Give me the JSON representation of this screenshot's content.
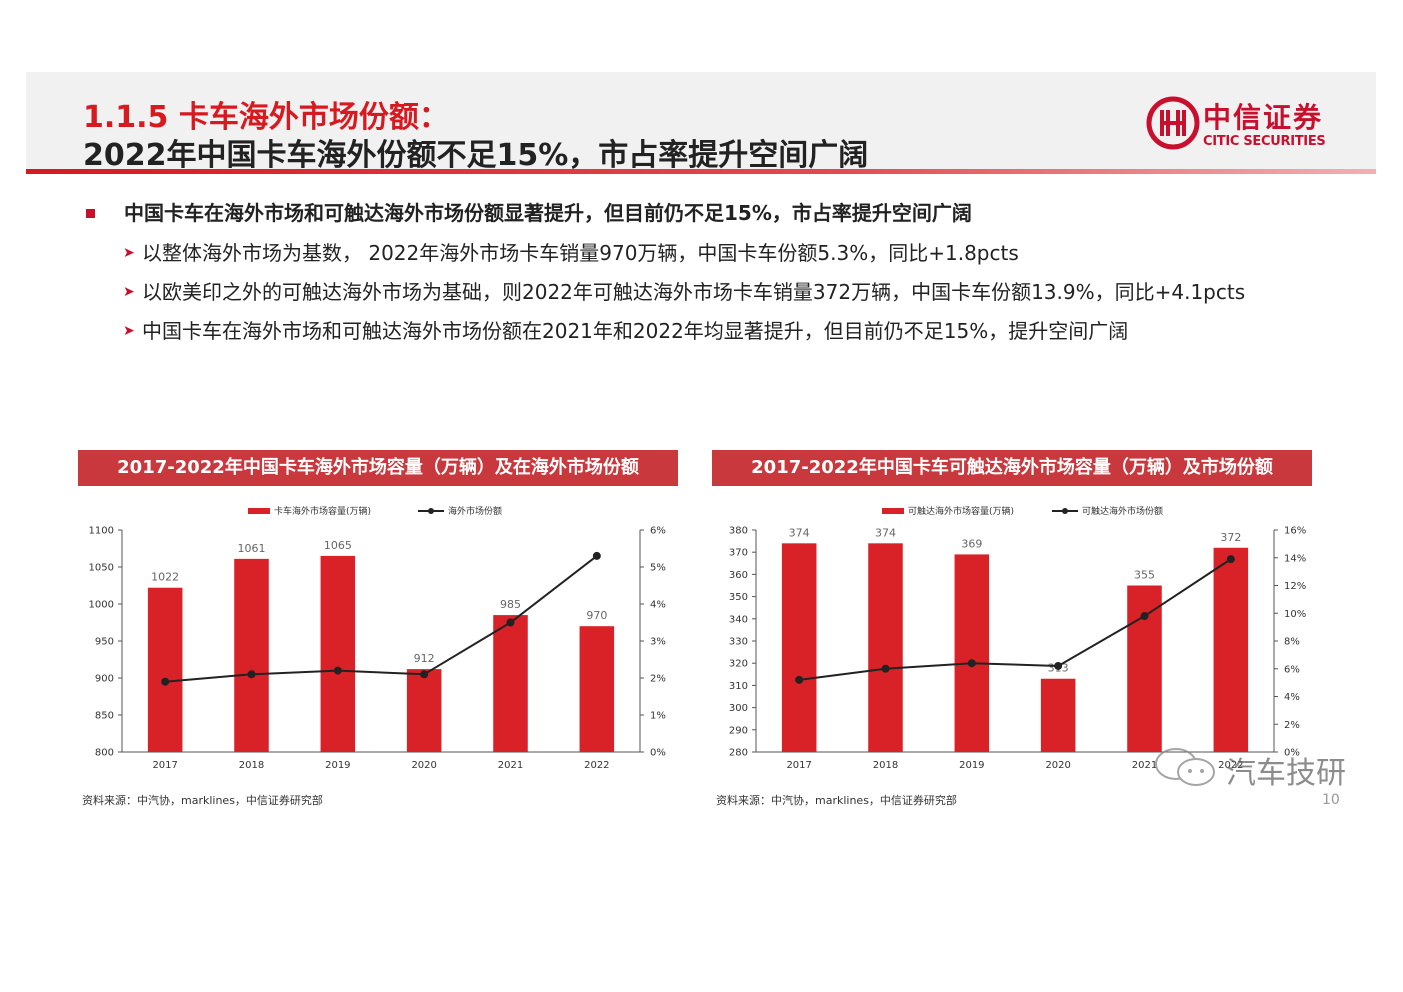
{
  "header": {
    "title_line1": "1.1.5 卡车海外市场份额：",
    "title_line2": "2022年中国卡车海外份额不足15%，市占率提升空间广阔",
    "logo_cn": "中信证券",
    "logo_en": "CITIC SECURITIES"
  },
  "bullets": {
    "main": "中国卡车在海外市场和可触达海外市场份额显著提升，但目前仍不足15%，市占率提升空间广阔",
    "sub": [
      "以整体海外市场为基数， 2022年海外市场卡车销量970万辆，中国卡车份额5.3%，同比+1.8pcts",
      "以欧美印之外的可触达海外市场为基础，则2022年可触达海外市场卡车销量372万辆，中国卡车份额13.9%，同比+4.1pcts",
      "中国卡车在海外市场和可触达海外市场份额在2021年和2022年均显著提升，但目前仍不足15%，提升空间广阔"
    ]
  },
  "colors": {
    "accent": "#c8102e",
    "bar": "#d92128",
    "line": "#222222",
    "title_bg": "#c9383d"
  },
  "chart_data": [
    {
      "type": "bar",
      "title": "2017-2022年中国卡车海外市场容量（万辆）及在海外市场份额",
      "categories": [
        "2017",
        "2018",
        "2019",
        "2020",
        "2021",
        "2022"
      ],
      "series": [
        {
          "name": "卡车海外市场容量(万辆)",
          "type": "bar",
          "axis": "left",
          "values": [
            1022,
            1061,
            1065,
            912,
            985,
            970
          ]
        },
        {
          "name": "海外市场份额",
          "type": "line",
          "axis": "right",
          "values": [
            1.9,
            2.1,
            2.2,
            2.1,
            3.5,
            5.3
          ]
        }
      ],
      "ylim": [
        800,
        1100
      ],
      "yticks": [
        "800",
        "850",
        "900",
        "950",
        "1000",
        "1050",
        "1100"
      ],
      "y2lim": [
        0,
        6
      ],
      "y2ticks": [
        "0%",
        "1%",
        "2%",
        "3%",
        "4%",
        "5%",
        "6%"
      ],
      "legend": "top",
      "grid": false,
      "source": "资料来源：中汽协，marklines，中信证券研究部"
    },
    {
      "type": "bar",
      "title": "2017-2022年中国卡车可触达海外市场容量（万辆）及市场份额",
      "categories": [
        "2017",
        "2018",
        "2019",
        "2020",
        "2021",
        "2022"
      ],
      "series": [
        {
          "name": "可触达海外市场容量(万辆)",
          "type": "bar",
          "axis": "left",
          "values": [
            374,
            374,
            369,
            313,
            355,
            372
          ]
        },
        {
          "name": "可触达海外市场份额",
          "type": "line",
          "axis": "right",
          "values": [
            5.2,
            6.0,
            6.4,
            6.2,
            9.8,
            13.9
          ]
        }
      ],
      "ylim": [
        280,
        380
      ],
      "yticks": [
        "280",
        "290",
        "300",
        "310",
        "320",
        "330",
        "340",
        "350",
        "360",
        "370",
        "380"
      ],
      "y2lim": [
        0,
        16
      ],
      "y2ticks": [
        "0%",
        "2%",
        "4%",
        "6%",
        "8%",
        "10%",
        "12%",
        "14%",
        "16%"
      ],
      "legend": "top",
      "grid": false,
      "source": "资料来源：中汽协，marklines，中信证券研究部"
    }
  ],
  "watermark": "汽车技研",
  "page_number": "10"
}
